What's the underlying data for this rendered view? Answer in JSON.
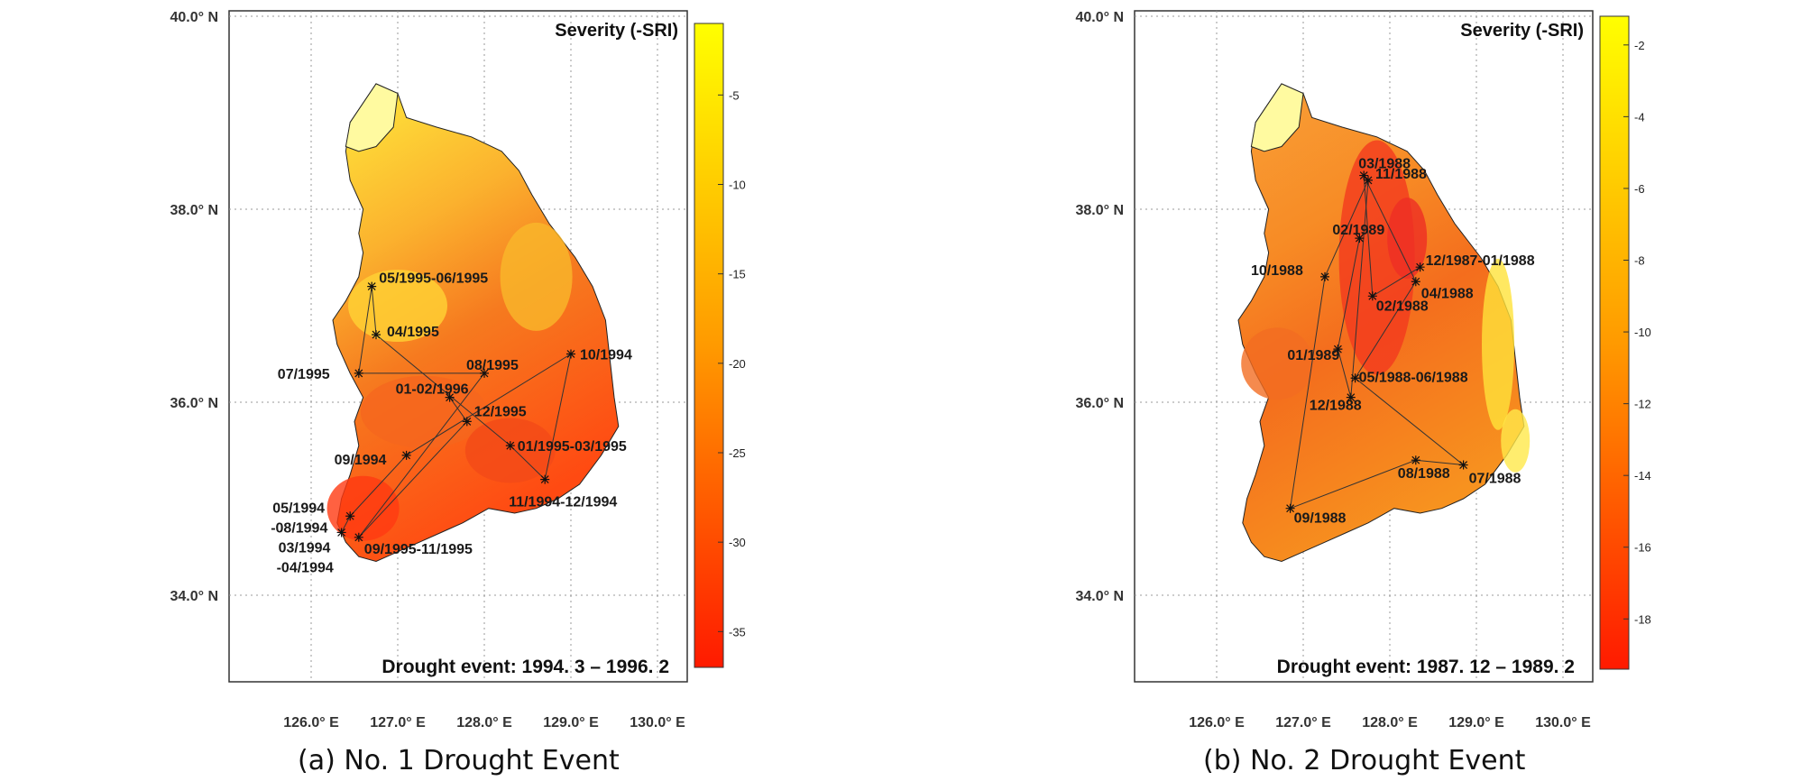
{
  "colors": {
    "high": "#ff1a00",
    "mid": "#ff9a00",
    "low": "#ffff00",
    "pale": "#fffaa0",
    "grid": "#999999"
  },
  "panels": [
    {
      "caption": "(a) No. 1 Drought Event",
      "legend_title": "Severity (-SRI)",
      "event_text": "Drought event: 1994. 3 – 1996. 2",
      "lat_ticks": [
        "40.0° N",
        "38.0° N",
        "36.0° N",
        "34.0° N"
      ],
      "lon_ticks": [
        "126.0° E",
        "127.0° E",
        "128.0° E",
        "129.0° E",
        "130.0° E"
      ],
      "cb_ticks": [
        "-5",
        "-10",
        "-15",
        "-20",
        "-25",
        "-30",
        "-35"
      ],
      "cb_range": [
        -1,
        -37
      ],
      "events": [
        {
          "label": "03/1994",
          "label2": "-04/1994",
          "lon": 126.35,
          "lat": 34.65
        },
        {
          "label": "05/1994",
          "label2": "-08/1994",
          "lon": 126.45,
          "lat": 34.82
        },
        {
          "label": "09/1994",
          "lon": 127.1,
          "lat": 35.45
        },
        {
          "label": "10/1994",
          "lon": 129.0,
          "lat": 36.5
        },
        {
          "label": "11/1994-12/1994",
          "lon": 128.7,
          "lat": 35.2
        },
        {
          "label": "01/1995-03/1995",
          "lon": 128.3,
          "lat": 35.55
        },
        {
          "label": "04/1995",
          "lon": 126.75,
          "lat": 36.7
        },
        {
          "label": "05/1995-06/1995",
          "lon": 126.7,
          "lat": 37.2
        },
        {
          "label": "07/1995",
          "lon": 126.55,
          "lat": 36.3
        },
        {
          "label": "08/1995",
          "lon": 128.0,
          "lat": 36.3
        },
        {
          "label": "09/1995-11/1995",
          "lon": 126.55,
          "lat": 34.6
        },
        {
          "label": "12/1995",
          "lon": 127.8,
          "lat": 35.8
        },
        {
          "label": "01-02/1996",
          "lon": 127.6,
          "lat": 36.05
        }
      ]
    },
    {
      "caption": "(b) No. 2 Drought Event",
      "legend_title": "Severity (-SRI)",
      "event_text": "Drought event: 1987. 12 – 1989. 2",
      "lat_ticks": [
        "40.0° N",
        "38.0° N",
        "36.0° N",
        "34.0° N"
      ],
      "lon_ticks": [
        "126.0° E",
        "127.0° E",
        "128.0° E",
        "129.0° E",
        "130.0° E"
      ],
      "cb_ticks": [
        "-2",
        "-4",
        "-6",
        "-8",
        "-10",
        "-12",
        "-14",
        "-16",
        "-18"
      ],
      "cb_range": [
        -1.2,
        -19.4
      ],
      "events": [
        {
          "label": "12/1987-01/1988",
          "lon": 128.35,
          "lat": 37.4
        },
        {
          "label": "02/1988",
          "lon": 127.8,
          "lat": 37.1
        },
        {
          "label": "03/1988",
          "lon": 127.7,
          "lat": 38.35
        },
        {
          "label": "04/1988",
          "lon": 128.3,
          "lat": 37.25
        },
        {
          "label": "05/1988-06/1988",
          "lon": 127.6,
          "lat": 36.25
        },
        {
          "label": "07/1988",
          "lon": 128.85,
          "lat": 35.35
        },
        {
          "label": "08/1988",
          "lon": 128.3,
          "lat": 35.4
        },
        {
          "label": "09/1988",
          "lon": 126.85,
          "lat": 34.9
        },
        {
          "label": "10/1988",
          "lon": 127.25,
          "lat": 37.3
        },
        {
          "label": "11/1988",
          "lon": 127.75,
          "lat": 38.3
        },
        {
          "label": "12/1988",
          "lon": 127.55,
          "lat": 36.05
        },
        {
          "label": "01/1989",
          "lon": 127.4,
          "lat": 36.55
        },
        {
          "label": "02/1989",
          "lon": 127.65,
          "lat": 37.7
        }
      ]
    }
  ]
}
